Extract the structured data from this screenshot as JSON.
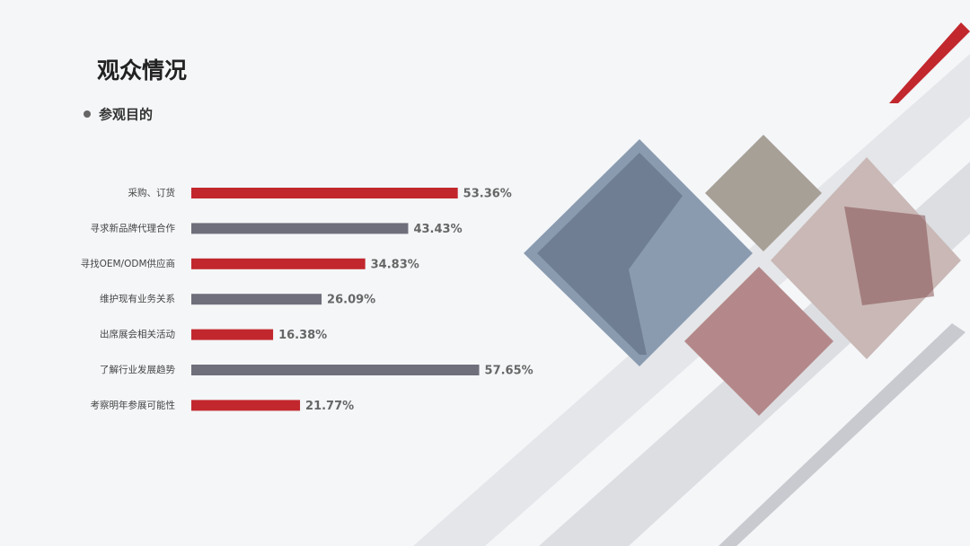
{
  "chart_data": {
    "type": "hbar",
    "title": "观众情况",
    "subtitle": "参观目的",
    "categories": [
      "采购、订货",
      "寻求新品牌代理合作",
      "寻找OEM/ODM供应商",
      "维护现有业务关系",
      "出席展会相关活动",
      "了解行业发展趋势",
      "考察明年参展可能性"
    ],
    "values": [
      53.36,
      43.43,
      34.83,
      26.09,
      16.38,
      57.65,
      21.77
    ],
    "value_labels": [
      "53.36%",
      "43.43%",
      "34.83%",
      "26.09%",
      "16.38%",
      "57.65%",
      "21.77%"
    ],
    "colors": [
      "#c1272d",
      "#6e6f7b",
      "#c1272d",
      "#6e6f7b",
      "#c1272d",
      "#6e6f7b",
      "#c1272d"
    ]
  }
}
